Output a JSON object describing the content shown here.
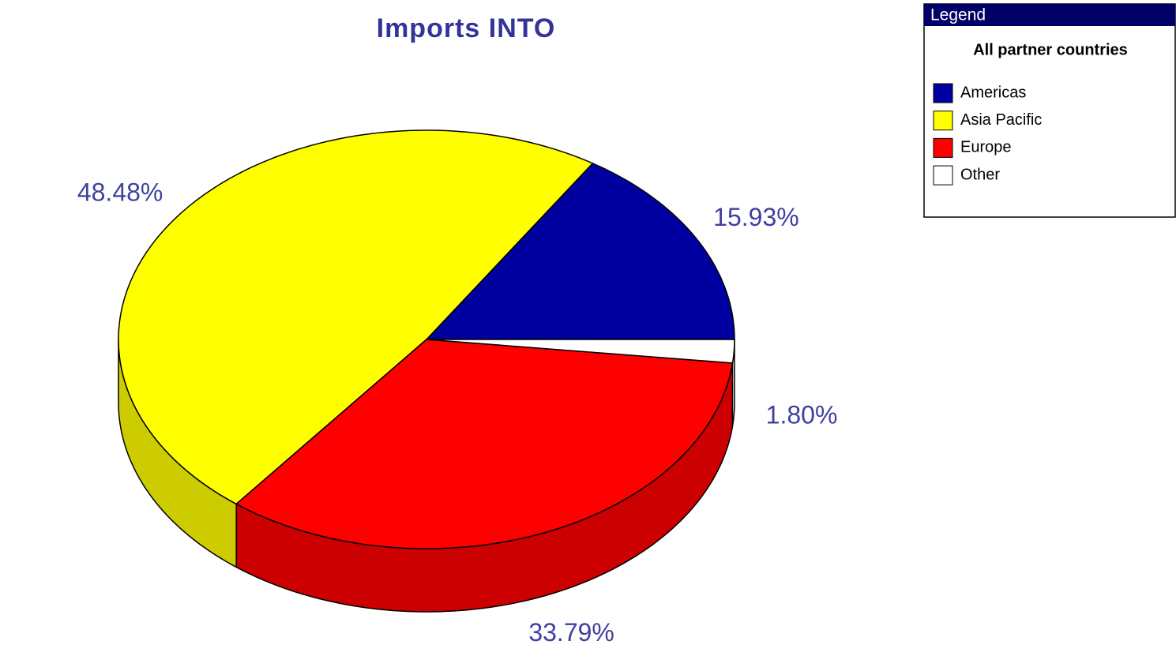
{
  "chart_data": {
    "type": "pie3d",
    "title": "Imports INTO",
    "legend_title": "Legend",
    "legend_subtitle": "All partner countries",
    "categories": [
      "Americas",
      "Asia Pacific",
      "Europe",
      "Other"
    ],
    "values": [
      15.93,
      48.48,
      33.79,
      1.8
    ],
    "value_labels": [
      "15.93%",
      "48.48%",
      "33.79%",
      "1.80%"
    ],
    "colors": [
      "#0000a0",
      "#ffff00",
      "#ff0000",
      "#ffffff"
    ]
  }
}
